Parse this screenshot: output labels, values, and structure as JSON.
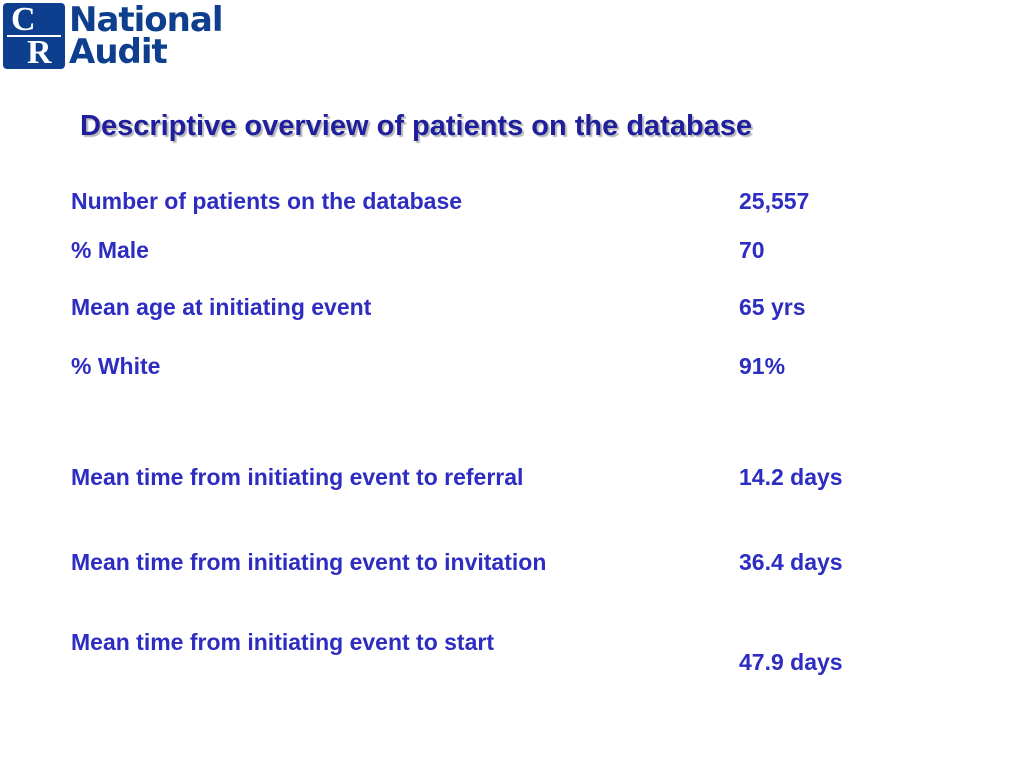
{
  "logo": {
    "mark_top": "C",
    "mark_bottom": "R",
    "word_1": "National",
    "word_2": "Audit"
  },
  "title": "Descriptive overview of patients on the database",
  "rows": [
    {
      "label": "Number of patients on the database",
      "value": "25,557"
    },
    {
      "label": "% Male",
      "value": "70"
    },
    {
      "label": "Mean age at initiating event",
      "value": "65 yrs"
    },
    {
      "label": "% White",
      "value": "91%"
    },
    {
      "label": "Mean time from initiating event to referral",
      "value": "14.2 days"
    },
    {
      "label": "Mean time from initiating event to invitation",
      "value": "36.4 days"
    },
    {
      "label": "Mean time from initiating event to start",
      "value": "47.9 days"
    }
  ],
  "colors": {
    "logo_blue": "#0e3f8e",
    "title_blue": "#1f1f9e",
    "text_blue": "#2d2dc2"
  }
}
